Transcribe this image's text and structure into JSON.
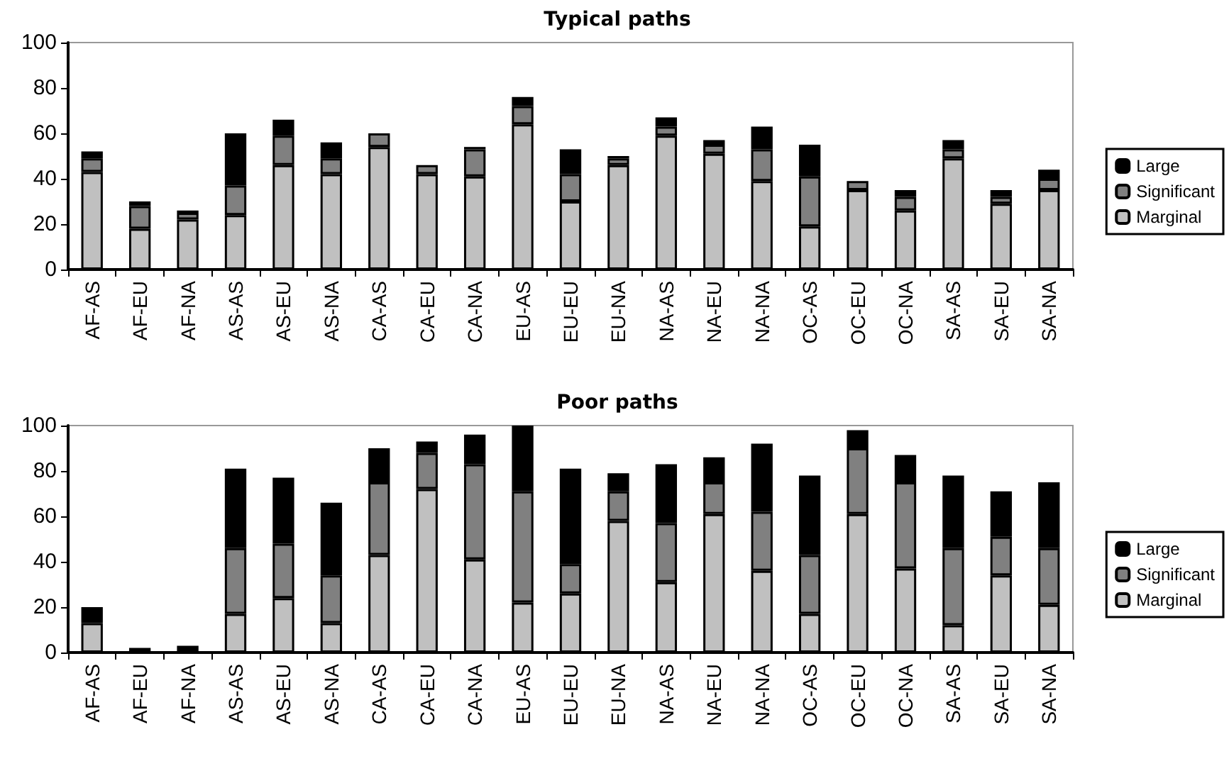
{
  "chart_data": [
    {
      "type": "bar",
      "title": "Typical paths",
      "stacked": true,
      "grid": false,
      "legend": "right",
      "categories": [
        "AF-AS",
        "AF-EU",
        "AF-NA",
        "AS-AS",
        "AS-EU",
        "AS-NA",
        "CA-AS",
        "CA-EU",
        "CA-NA",
        "EU-AS",
        "EU-EU",
        "EU-NA",
        "NA-AS",
        "NA-EU",
        "NA-NA",
        "OC-AS",
        "OC-EU",
        "OC-NA",
        "SA-AS",
        "SA-EU",
        "SA-NA"
      ],
      "ylim": [
        0,
        100
      ],
      "yticks": [
        0,
        20,
        40,
        60,
        80,
        100
      ],
      "series": [
        {
          "name": "Marginal",
          "color": "#c0c0c0",
          "values": [
            43,
            18,
            22,
            24,
            46,
            42,
            54,
            42,
            41,
            64,
            30,
            46,
            59,
            51,
            39,
            19,
            35,
            26,
            49,
            29,
            35
          ]
        },
        {
          "name": "Significant",
          "color": "#808080",
          "values": [
            6,
            10,
            3,
            13,
            13,
            7,
            6,
            4,
            12,
            8,
            12,
            3,
            4,
            4,
            14,
            22,
            4,
            6,
            4,
            3,
            5
          ]
        },
        {
          "name": "Large",
          "color": "#000000",
          "values": [
            3,
            2,
            1,
            23,
            7,
            7,
            0,
            0,
            1,
            4,
            11,
            1,
            4,
            2,
            10,
            14,
            0,
            3,
            4,
            3,
            4
          ]
        }
      ]
    },
    {
      "type": "bar",
      "title": "Poor paths",
      "stacked": true,
      "grid": false,
      "legend": "right",
      "categories": [
        "AF-AS",
        "AF-EU",
        "AF-NA",
        "AS-AS",
        "AS-EU",
        "AS-NA",
        "CA-AS",
        "CA-EU",
        "CA-NA",
        "EU-AS",
        "EU-EU",
        "EU-NA",
        "NA-AS",
        "NA-EU",
        "NA-NA",
        "OC-AS",
        "OC-EU",
        "OC-NA",
        "SA-AS",
        "SA-EU",
        "SA-NA"
      ],
      "ylim": [
        0,
        100
      ],
      "yticks": [
        0,
        20,
        40,
        60,
        80,
        100
      ],
      "series": [
        {
          "name": "Marginal",
          "color": "#c0c0c0",
          "values": [
            13,
            0,
            0,
            17,
            24,
            13,
            43,
            72,
            41,
            22,
            26,
            58,
            31,
            61,
            36,
            17,
            61,
            37,
            12,
            34,
            21
          ]
        },
        {
          "name": "Significant",
          "color": "#808080",
          "values": [
            0,
            0,
            0,
            29,
            24,
            21,
            32,
            16,
            42,
            49,
            13,
            13,
            26,
            14,
            26,
            26,
            29,
            38,
            34,
            17,
            25
          ]
        },
        {
          "name": "Large",
          "color": "#000000",
          "values": [
            7,
            2,
            3,
            35,
            29,
            32,
            15,
            5,
            13,
            29,
            42,
            8,
            26,
            11,
            30,
            35,
            8,
            12,
            32,
            20,
            29
          ]
        }
      ]
    }
  ]
}
